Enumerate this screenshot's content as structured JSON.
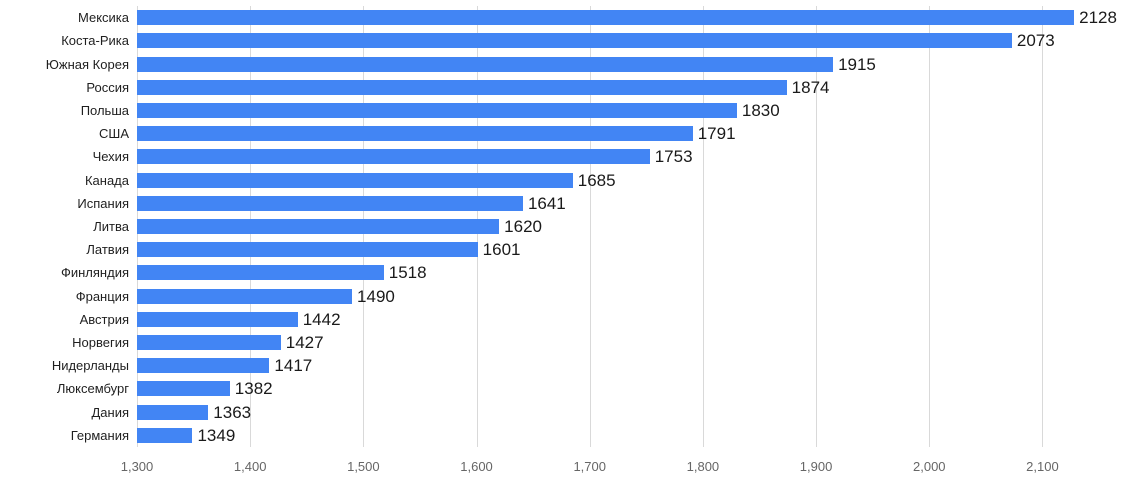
{
  "chart_data": {
    "type": "bar",
    "orientation": "horizontal",
    "title": "",
    "xlabel": "",
    "ylabel": "",
    "categories": [
      "Мексика",
      "Коста-Рика",
      "Южная Корея",
      "Россия",
      "Польша",
      "США",
      "Чехия",
      "Канада",
      "Испания",
      "Литва",
      "Латвия",
      "Финляндия",
      "Франция",
      "Австрия",
      "Норвегия",
      "Нидерланды",
      "Люксембург",
      "Дания",
      "Германия"
    ],
    "values": [
      2128,
      2073,
      1915,
      1874,
      1830,
      1791,
      1753,
      1685,
      1641,
      1620,
      1601,
      1518,
      1490,
      1442,
      1427,
      1417,
      1382,
      1363,
      1349
    ],
    "value_labels": [
      "2128",
      "2073",
      "1915",
      "1874",
      "1830",
      "1791",
      "1753",
      "1685",
      "1641",
      "1620",
      "1601",
      "1518",
      "1490",
      "1442",
      "1427",
      "1417",
      "1382",
      "1363",
      "1349"
    ],
    "axis_min": 1300,
    "axis_max": 2180,
    "x_ticks": [
      1300,
      1400,
      1500,
      1600,
      1700,
      1800,
      1900,
      2000,
      2100
    ],
    "x_tick_labels": [
      "1,300",
      "1,400",
      "1,500",
      "1,600",
      "1,700",
      "1,800",
      "1,900",
      "2,000",
      "2,100"
    ],
    "grid": true,
    "legend": "none",
    "bar_color": "#4285f4",
    "gridline_color": "#d9d9d9",
    "value_label_color": "#1a1a1a",
    "category_label_color": "#1f1f1f",
    "tick_label_color": "#666666"
  }
}
